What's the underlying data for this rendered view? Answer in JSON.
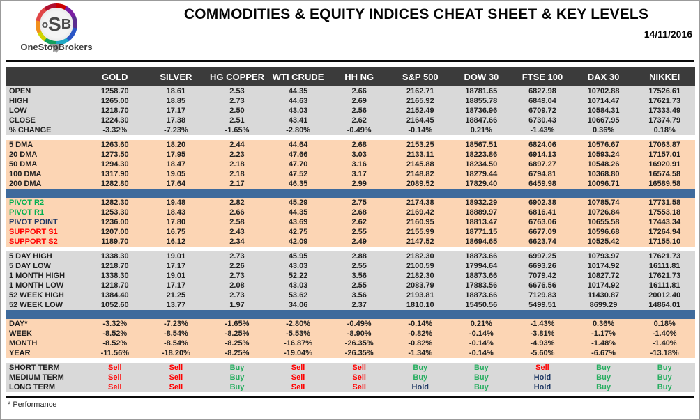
{
  "page": {
    "logo": {
      "letter1": "o",
      "letter2": "S",
      "letter3": "B",
      "name": "OneStopBrokers"
    },
    "title": "COMMODITIES & EQUITY INDICES CHEAT SHEET & KEY LEVELS",
    "date": "14/11/2016",
    "footnote": "* Performance"
  },
  "colors": {
    "header_bg": "#3b3b3b",
    "gray_section": "#d9d9d9",
    "peach_section": "#fcd5b4",
    "blue_bar": "#3e6a9c",
    "buy": "#27ae60",
    "sell": "#ff0000",
    "hold": "#1f3864",
    "resistance_label": "#00b050",
    "support_label": "#ff0000"
  },
  "table": {
    "columns": [
      "GOLD",
      "SILVER",
      "HG COPPER",
      "WTI CRUDE",
      "HH NG",
      "S&P 500",
      "DOW 30",
      "FTSE 100",
      "DAX 30",
      "NIKKEI"
    ],
    "sections": [
      {
        "id": "ohlc",
        "bg": "gray",
        "after": "gap",
        "rows": [
          {
            "label": "OPEN",
            "values": [
              "1258.70",
              "18.61",
              "2.53",
              "44.35",
              "2.66",
              "2162.71",
              "18781.65",
              "6827.98",
              "10702.88",
              "17526.61"
            ]
          },
          {
            "label": "HIGH",
            "values": [
              "1265.00",
              "18.85",
              "2.73",
              "44.63",
              "2.69",
              "2165.92",
              "18855.78",
              "6849.04",
              "10714.47",
              "17621.73"
            ]
          },
          {
            "label": "LOW",
            "values": [
              "1218.70",
              "17.17",
              "2.50",
              "43.03",
              "2.56",
              "2152.49",
              "18736.96",
              "6709.72",
              "10584.31",
              "17333.49"
            ]
          },
          {
            "label": "CLOSE",
            "values": [
              "1224.30",
              "17.38",
              "2.51",
              "43.41",
              "2.62",
              "2164.45",
              "18847.66",
              "6730.43",
              "10667.95",
              "17374.79"
            ]
          },
          {
            "label": "% CHANGE",
            "values": [
              "-3.32%",
              "-7.23%",
              "-1.65%",
              "-2.80%",
              "-0.49%",
              "-0.14%",
              "0.21%",
              "-1.43%",
              "0.36%",
              "0.18%"
            ]
          }
        ]
      },
      {
        "id": "dma",
        "bg": "peach",
        "after": "blue",
        "rows": [
          {
            "label": "5 DMA",
            "values": [
              "1263.60",
              "18.20",
              "2.44",
              "44.64",
              "2.68",
              "2153.25",
              "18567.51",
              "6824.06",
              "10576.67",
              "17063.87"
            ]
          },
          {
            "label": "20 DMA",
            "values": [
              "1273.50",
              "17.95",
              "2.23",
              "47.66",
              "3.03",
              "2133.11",
              "18223.86",
              "6914.13",
              "10593.24",
              "17157.01"
            ]
          },
          {
            "label": "50 DMA",
            "values": [
              "1294.30",
              "18.47",
              "2.18",
              "47.70",
              "3.16",
              "2145.88",
              "18234.50",
              "6897.27",
              "10548.26",
              "16920.91"
            ]
          },
          {
            "label": "100 DMA",
            "values": [
              "1317.90",
              "19.05",
              "2.18",
              "47.52",
              "3.17",
              "2148.82",
              "18279.44",
              "6794.81",
              "10368.80",
              "16574.58"
            ]
          },
          {
            "label": "200 DMA",
            "values": [
              "1282.80",
              "17.64",
              "2.17",
              "46.35",
              "2.99",
              "2089.52",
              "17829.40",
              "6459.98",
              "10096.71",
              "16589.58"
            ]
          }
        ]
      },
      {
        "id": "pivots",
        "bg": "peach",
        "after": "gap",
        "rows": [
          {
            "label": "PIVOT R2",
            "label_color": "green",
            "values": [
              "1282.30",
              "19.48",
              "2.82",
              "45.29",
              "2.75",
              "2174.38",
              "18932.29",
              "6902.38",
              "10785.74",
              "17731.58"
            ]
          },
          {
            "label": "PIVOT R1",
            "label_color": "green",
            "values": [
              "1253.30",
              "18.43",
              "2.66",
              "44.35",
              "2.68",
              "2169.42",
              "18889.97",
              "6816.41",
              "10726.84",
              "17553.18"
            ]
          },
          {
            "label": "PIVOT POINT",
            "label_color": "navy",
            "values": [
              "1236.00",
              "17.80",
              "2.58",
              "43.69",
              "2.62",
              "2160.95",
              "18813.47",
              "6763.06",
              "10655.58",
              "17443.34"
            ]
          },
          {
            "label": "SUPPORT S1",
            "label_color": "red",
            "values": [
              "1207.00",
              "16.75",
              "2.43",
              "42.75",
              "2.55",
              "2155.99",
              "18771.15",
              "6677.09",
              "10596.68",
              "17264.94"
            ]
          },
          {
            "label": "SUPPORT S2",
            "label_color": "red",
            "values": [
              "1189.70",
              "16.12",
              "2.34",
              "42.09",
              "2.49",
              "2147.52",
              "18694.65",
              "6623.74",
              "10525.42",
              "17155.10"
            ]
          }
        ]
      },
      {
        "id": "ranges",
        "bg": "gray",
        "after": "blue",
        "rows": [
          {
            "label": "5 DAY HIGH",
            "values": [
              "1338.30",
              "19.01",
              "2.73",
              "45.95",
              "2.88",
              "2182.30",
              "18873.66",
              "6997.25",
              "10793.97",
              "17621.73"
            ]
          },
          {
            "label": "5 DAY LOW",
            "values": [
              "1218.70",
              "17.17",
              "2.26",
              "43.03",
              "2.55",
              "2100.59",
              "17994.64",
              "6693.26",
              "10174.92",
              "16111.81"
            ]
          },
          {
            "label": "1 MONTH HIGH",
            "values": [
              "1338.30",
              "19.01",
              "2.73",
              "52.22",
              "3.56",
              "2182.30",
              "18873.66",
              "7079.42",
              "10827.72",
              "17621.73"
            ]
          },
          {
            "label": "1 MONTH LOW",
            "values": [
              "1218.70",
              "17.17",
              "2.08",
              "43.03",
              "2.55",
              "2083.79",
              "17883.56",
              "6676.56",
              "10174.92",
              "16111.81"
            ]
          },
          {
            "label": "52 WEEK HIGH",
            "values": [
              "1384.40",
              "21.25",
              "2.73",
              "53.62",
              "3.56",
              "2193.81",
              "18873.66",
              "7129.83",
              "11430.87",
              "20012.40"
            ]
          },
          {
            "label": "52 WEEK LOW",
            "values": [
              "1052.60",
              "13.77",
              "1.97",
              "34.06",
              "2.37",
              "1810.10",
              "15450.56",
              "5499.51",
              "8699.29",
              "14864.01"
            ]
          }
        ]
      },
      {
        "id": "performance",
        "bg": "peach",
        "after": "gap",
        "rows": [
          {
            "label": "DAY*",
            "values": [
              "-3.32%",
              "-7.23%",
              "-1.65%",
              "-2.80%",
              "-0.49%",
              "-0.14%",
              "0.21%",
              "-1.43%",
              "0.36%",
              "0.18%"
            ]
          },
          {
            "label": "WEEK",
            "values": [
              "-8.52%",
              "-8.54%",
              "-8.25%",
              "-5.53%",
              "-8.90%",
              "-0.82%",
              "-0.14%",
              "-3.81%",
              "-1.17%",
              "-1.40%"
            ]
          },
          {
            "label": "MONTH",
            "values": [
              "-8.52%",
              "-8.54%",
              "-8.25%",
              "-16.87%",
              "-26.35%",
              "-0.82%",
              "-0.14%",
              "-4.93%",
              "-1.48%",
              "-1.40%"
            ]
          },
          {
            "label": "YEAR",
            "values": [
              "-11.56%",
              "-18.20%",
              "-8.25%",
              "-19.04%",
              "-26.35%",
              "-1.34%",
              "-0.14%",
              "-5.60%",
              "-6.67%",
              "-13.18%"
            ]
          }
        ]
      },
      {
        "id": "signals",
        "bg": "gray",
        "after": null,
        "signal_row": true,
        "rows": [
          {
            "label": "SHORT TERM",
            "values": [
              "Sell",
              "Sell",
              "Buy",
              "Sell",
              "Sell",
              "Buy",
              "Buy",
              "Sell",
              "Buy",
              "Buy"
            ]
          },
          {
            "label": "MEDIUM TERM",
            "values": [
              "Sell",
              "Sell",
              "Buy",
              "Sell",
              "Sell",
              "Buy",
              "Buy",
              "Hold",
              "Buy",
              "Buy"
            ]
          },
          {
            "label": "LONG TERM",
            "values": [
              "Sell",
              "Sell",
              "Buy",
              "Sell",
              "Sell",
              "Hold",
              "Buy",
              "Hold",
              "Buy",
              "Buy"
            ]
          }
        ]
      }
    ]
  }
}
